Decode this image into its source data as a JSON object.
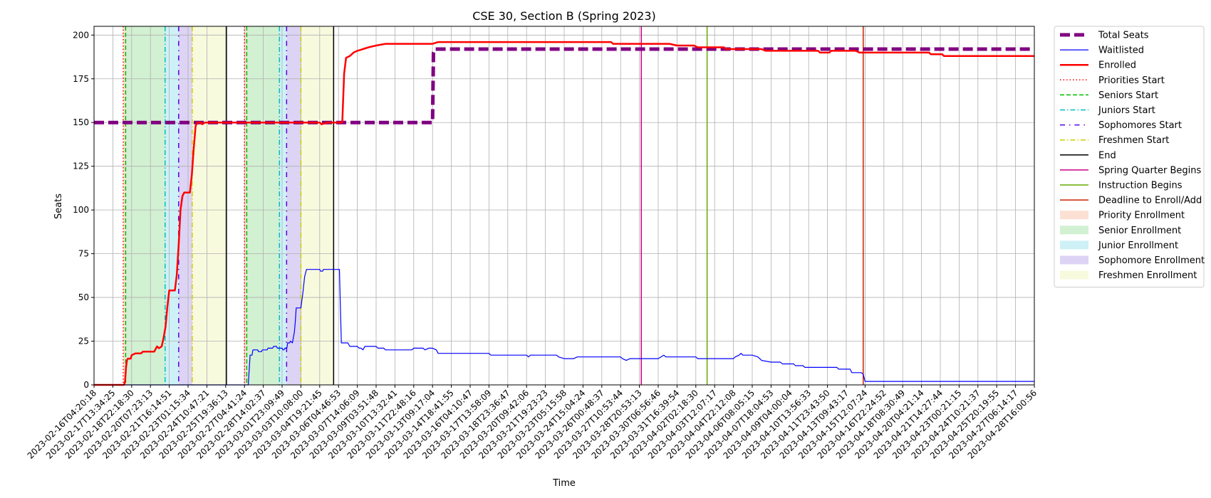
{
  "chart_data": {
    "type": "line",
    "title": "CSE 30, Section B (Spring 2023)",
    "xlabel": "Time",
    "ylabel": "Seats",
    "ylim": [
      0,
      205
    ],
    "yticks": [
      0,
      25,
      50,
      75,
      100,
      125,
      150,
      175,
      200
    ],
    "grid": true,
    "legend_position": "outside-right",
    "xticks": [
      "2023-02-16T04:20:18",
      "2023-02-17T13:34:25",
      "2023-02-18T22:18:30",
      "2023-02-20T07:23:13",
      "2023-02-21T16:14:51",
      "2023-02-23T01:15:34",
      "2023-02-24T10:47:21",
      "2023-02-25T19:36:13",
      "2023-02-27T04:41:24",
      "2023-02-28T14:02:37",
      "2023-03-01T23:09:49",
      "2023-03-03T10:08:00",
      "2023-03-04T19:21:45",
      "2023-03-06T04:46:53",
      "2023-03-07T14:06:09",
      "2023-03-09T03:51:48",
      "2023-03-10T13:32:41",
      "2023-03-11T22:48:16",
      "2023-03-13T09:17:04",
      "2023-03-14T18:41:55",
      "2023-03-16T04:10:47",
      "2023-03-17T13:58:09",
      "2023-03-18T23:36:47",
      "2023-03-20T09:42:06",
      "2023-03-21T19:23:23",
      "2023-03-23T05:15:58",
      "2023-03-24T15:04:24",
      "2023-03-26T00:48:37",
      "2023-03-27T10:53:44",
      "2023-03-28T20:53:13",
      "2023-03-30T06:56:46",
      "2023-03-31T16:39:54",
      "2023-04-02T02:18:30",
      "2023-04-03T12:07:17",
      "2023-04-04T22:12:08",
      "2023-04-06T08:05:15",
      "2023-04-07T18:04:53",
      "2023-04-09T04:00:04",
      "2023-04-10T13:56:33",
      "2023-04-11T23:43:50",
      "2023-04-13T09:43:17",
      "2023-04-15T12:07:24",
      "2023-04-16T22:24:52",
      "2023-04-18T08:30:49",
      "2023-04-20T04:21:14",
      "2023-04-21T14:27:44",
      "2023-04-23T00:21:15",
      "2023-04-24T10:21:37",
      "2023-04-25T20:19:55",
      "2023-04-27T06:14:17",
      "2023-04-28T16:00:56"
    ],
    "x_index_range": [
      0,
      50.0
    ],
    "series": [
      {
        "name": "Total Seats",
        "color": "#800080",
        "style": "dashed-thick",
        "points": [
          [
            0,
            150
          ],
          [
            18.0,
            150
          ],
          [
            18.05,
            190
          ],
          [
            18.12,
            192
          ],
          [
            50,
            192
          ]
        ]
      },
      {
        "name": "Waitlisted",
        "color": "#0000ff",
        "style": "solid-thin",
        "points": [
          [
            0,
            0
          ],
          [
            8.2,
            0
          ],
          [
            8.3,
            17
          ],
          [
            8.4,
            17
          ],
          [
            8.45,
            20
          ],
          [
            8.7,
            20
          ],
          [
            8.75,
            19
          ],
          [
            8.9,
            19
          ],
          [
            8.95,
            20
          ],
          [
            9.2,
            20
          ],
          [
            9.25,
            21
          ],
          [
            9.5,
            21
          ],
          [
            9.55,
            22
          ],
          [
            9.7,
            22
          ],
          [
            9.75,
            21
          ],
          [
            10.0,
            21
          ],
          [
            10.05,
            20
          ],
          [
            10.1,
            20
          ],
          [
            10.15,
            21
          ],
          [
            10.25,
            21
          ],
          [
            10.3,
            24
          ],
          [
            10.4,
            24
          ],
          [
            10.45,
            25
          ],
          [
            10.55,
            24
          ],
          [
            10.6,
            27
          ],
          [
            10.65,
            30
          ],
          [
            10.7,
            36
          ],
          [
            10.75,
            44
          ],
          [
            11.0,
            44
          ],
          [
            11.1,
            52
          ],
          [
            11.2,
            62
          ],
          [
            11.3,
            66
          ],
          [
            12.0,
            66
          ],
          [
            12.05,
            65
          ],
          [
            12.15,
            65
          ],
          [
            12.2,
            66
          ],
          [
            13.05,
            66
          ],
          [
            13.1,
            45
          ],
          [
            13.15,
            24
          ],
          [
            13.5,
            24
          ],
          [
            13.6,
            22
          ],
          [
            14.0,
            22
          ],
          [
            14.1,
            21
          ],
          [
            14.2,
            21
          ],
          [
            14.3,
            20
          ],
          [
            14.4,
            22
          ],
          [
            15.0,
            22
          ],
          [
            15.1,
            21
          ],
          [
            15.4,
            21
          ],
          [
            15.5,
            20
          ],
          [
            16.9,
            20
          ],
          [
            17.0,
            21
          ],
          [
            17.5,
            21
          ],
          [
            17.6,
            20
          ],
          [
            17.8,
            21
          ],
          [
            18.0,
            21
          ],
          [
            18.2,
            20
          ],
          [
            18.3,
            18
          ],
          [
            21.0,
            18
          ],
          [
            21.1,
            17
          ],
          [
            23.0,
            17
          ],
          [
            23.1,
            16
          ],
          [
            23.2,
            17
          ],
          [
            24.6,
            17
          ],
          [
            24.7,
            16
          ],
          [
            25.0,
            15
          ],
          [
            25.5,
            15
          ],
          [
            25.7,
            16
          ],
          [
            28.0,
            16
          ],
          [
            28.1,
            15
          ],
          [
            28.3,
            14
          ],
          [
            28.5,
            15
          ],
          [
            30.0,
            15
          ],
          [
            30.3,
            17
          ],
          [
            30.4,
            16
          ],
          [
            32.0,
            16
          ],
          [
            32.1,
            15
          ],
          [
            34.0,
            15
          ],
          [
            34.1,
            16
          ],
          [
            34.3,
            17
          ],
          [
            34.4,
            18
          ],
          [
            34.5,
            17
          ],
          [
            35.0,
            17
          ],
          [
            35.3,
            16
          ],
          [
            35.5,
            14
          ],
          [
            36.0,
            13
          ],
          [
            36.5,
            13
          ],
          [
            36.6,
            12
          ],
          [
            37.2,
            12
          ],
          [
            37.3,
            11
          ],
          [
            37.7,
            11
          ],
          [
            37.8,
            10
          ],
          [
            39.5,
            10
          ],
          [
            39.6,
            9
          ],
          [
            40.2,
            9
          ],
          [
            40.3,
            7
          ],
          [
            40.8,
            7
          ],
          [
            40.9,
            6
          ],
          [
            41.0,
            2
          ],
          [
            50,
            2
          ]
        ]
      },
      {
        "name": "Enrolled",
        "color": "#ff0000",
        "style": "solid-thick",
        "points": [
          [
            0,
            0
          ],
          [
            1.6,
            0
          ],
          [
            1.65,
            2
          ],
          [
            1.7,
            10
          ],
          [
            1.75,
            14
          ],
          [
            1.8,
            15
          ],
          [
            1.95,
            15
          ],
          [
            2.0,
            17
          ],
          [
            2.2,
            18
          ],
          [
            2.5,
            18
          ],
          [
            2.6,
            19
          ],
          [
            3.2,
            19
          ],
          [
            3.35,
            22
          ],
          [
            3.45,
            21
          ],
          [
            3.6,
            22
          ],
          [
            3.7,
            27
          ],
          [
            3.8,
            33
          ],
          [
            3.9,
            45
          ],
          [
            4.0,
            54
          ],
          [
            4.3,
            54
          ],
          [
            4.4,
            63
          ],
          [
            4.5,
            80
          ],
          [
            4.6,
            100
          ],
          [
            4.7,
            108
          ],
          [
            4.8,
            110
          ],
          [
            5.1,
            110
          ],
          [
            5.2,
            120
          ],
          [
            5.3,
            135
          ],
          [
            5.4,
            148
          ],
          [
            5.5,
            150
          ],
          [
            5.7,
            150
          ],
          [
            5.75,
            149
          ],
          [
            5.9,
            150
          ],
          [
            12.0,
            150
          ],
          [
            12.1,
            149
          ],
          [
            12.4,
            150
          ],
          [
            13.2,
            150
          ],
          [
            13.3,
            178
          ],
          [
            13.4,
            187
          ],
          [
            13.6,
            188
          ],
          [
            13.8,
            190
          ],
          [
            14.0,
            191
          ],
          [
            14.3,
            192
          ],
          [
            14.6,
            193
          ],
          [
            15.0,
            194
          ],
          [
            15.5,
            195
          ],
          [
            18.0,
            195
          ],
          [
            18.3,
            196
          ],
          [
            27.5,
            196
          ],
          [
            27.6,
            195
          ],
          [
            30.6,
            195
          ],
          [
            31.0,
            194
          ],
          [
            31.9,
            194
          ],
          [
            32.1,
            193
          ],
          [
            33.5,
            193
          ],
          [
            33.6,
            192
          ],
          [
            35.5,
            192
          ],
          [
            35.7,
            191
          ],
          [
            37.5,
            191
          ],
          [
            38.5,
            191
          ],
          [
            38.6,
            190
          ],
          [
            39.1,
            190
          ],
          [
            39.2,
            191
          ],
          [
            40.5,
            191
          ],
          [
            40.7,
            190
          ],
          [
            44.4,
            190
          ],
          [
            44.5,
            189
          ],
          [
            45.1,
            189
          ],
          [
            45.2,
            188
          ],
          [
            50,
            188
          ]
        ]
      }
    ],
    "phase_bands": [
      {
        "name": "Priority Enrollment",
        "color": "#f4a582",
        "ranges": [
          [
            1.55,
            1.68
          ],
          [
            8.0,
            8.12
          ]
        ]
      },
      {
        "name": "Senior Enrollment",
        "color": "#7fd47f",
        "ranges": [
          [
            1.68,
            3.78
          ],
          [
            8.12,
            9.86
          ]
        ]
      },
      {
        "name": "Junior Enrollment",
        "color": "#6fd8e8",
        "ranges": [
          [
            3.78,
            4.5
          ],
          [
            9.86,
            10.24
          ]
        ]
      },
      {
        "name": "Sophomore Enrollment",
        "color": "#9e80e0",
        "ranges": [
          [
            4.5,
            5.22
          ],
          [
            10.24,
            11.0
          ]
        ]
      },
      {
        "name": "Freshmen Enrollment",
        "color": "#ecf0a0",
        "ranges": [
          [
            5.22,
            7.04
          ],
          [
            11.0,
            12.74
          ]
        ]
      }
    ],
    "vertical_lines": [
      {
        "name": "Priorities Start",
        "color": "#ff0000",
        "style": "dotted",
        "x": [
          1.55,
          8.0
        ]
      },
      {
        "name": "Seniors Start",
        "color": "#00bb00",
        "style": "dashed",
        "x": [
          1.68,
          8.12
        ]
      },
      {
        "name": "Juniors Start",
        "color": "#00bfbf",
        "style": "dashdot",
        "x": [
          3.78,
          9.86
        ]
      },
      {
        "name": "Sophomores Start",
        "color": "#5500dd",
        "style": "loosedot",
        "x": [
          4.5,
          10.24
        ]
      },
      {
        "name": "Freshmen Start",
        "color": "#cccc00",
        "style": "dashdot",
        "x": [
          5.22,
          11.0
        ]
      },
      {
        "name": "End",
        "color": "#000000",
        "style": "solid",
        "x": [
          7.04,
          12.74
        ]
      },
      {
        "name": "Spring Quarter Begins",
        "color": "#cc0088",
        "style": "solid",
        "x": [
          29.1
        ]
      },
      {
        "name": "Instruction Begins",
        "color": "#66aa00",
        "style": "solid",
        "x": [
          32.6
        ]
      },
      {
        "name": "Deadline to Enroll/Add",
        "color": "#cc2200",
        "style": "solid",
        "x": [
          40.9
        ]
      }
    ],
    "legend": [
      {
        "label": "Total Seats",
        "kind": "line",
        "color": "#800080",
        "style": "dashed-thick"
      },
      {
        "label": "Waitlisted",
        "kind": "line",
        "color": "#0000ff",
        "style": "solid-thin"
      },
      {
        "label": "Enrolled",
        "kind": "line",
        "color": "#ff0000",
        "style": "solid-thick"
      },
      {
        "label": "Priorities Start",
        "kind": "line",
        "color": "#ff0000",
        "style": "dotted"
      },
      {
        "label": "Seniors Start",
        "kind": "line",
        "color": "#00bb00",
        "style": "dashed"
      },
      {
        "label": "Juniors Start",
        "kind": "line",
        "color": "#00bfbf",
        "style": "dashdot"
      },
      {
        "label": "Sophomores Start",
        "kind": "line",
        "color": "#5500dd",
        "style": "loosedot"
      },
      {
        "label": "Freshmen Start",
        "kind": "line",
        "color": "#cccc00",
        "style": "dashdot"
      },
      {
        "label": "End",
        "kind": "line",
        "color": "#000000",
        "style": "solid"
      },
      {
        "label": "Spring Quarter Begins",
        "kind": "line",
        "color": "#cc0088",
        "style": "solid"
      },
      {
        "label": "Instruction Begins",
        "kind": "line",
        "color": "#66aa00",
        "style": "solid"
      },
      {
        "label": "Deadline to Enroll/Add",
        "kind": "line",
        "color": "#cc2200",
        "style": "solid"
      },
      {
        "label": "Priority Enrollment",
        "kind": "patch",
        "color": "#f4a582"
      },
      {
        "label": "Senior Enrollment",
        "kind": "patch",
        "color": "#7fd47f"
      },
      {
        "label": "Junior Enrollment",
        "kind": "patch",
        "color": "#6fd8e8"
      },
      {
        "label": "Sophomore Enrollment",
        "kind": "patch",
        "color": "#9e80e0"
      },
      {
        "label": "Freshmen Enrollment",
        "kind": "patch",
        "color": "#ecf0a0"
      }
    ]
  }
}
